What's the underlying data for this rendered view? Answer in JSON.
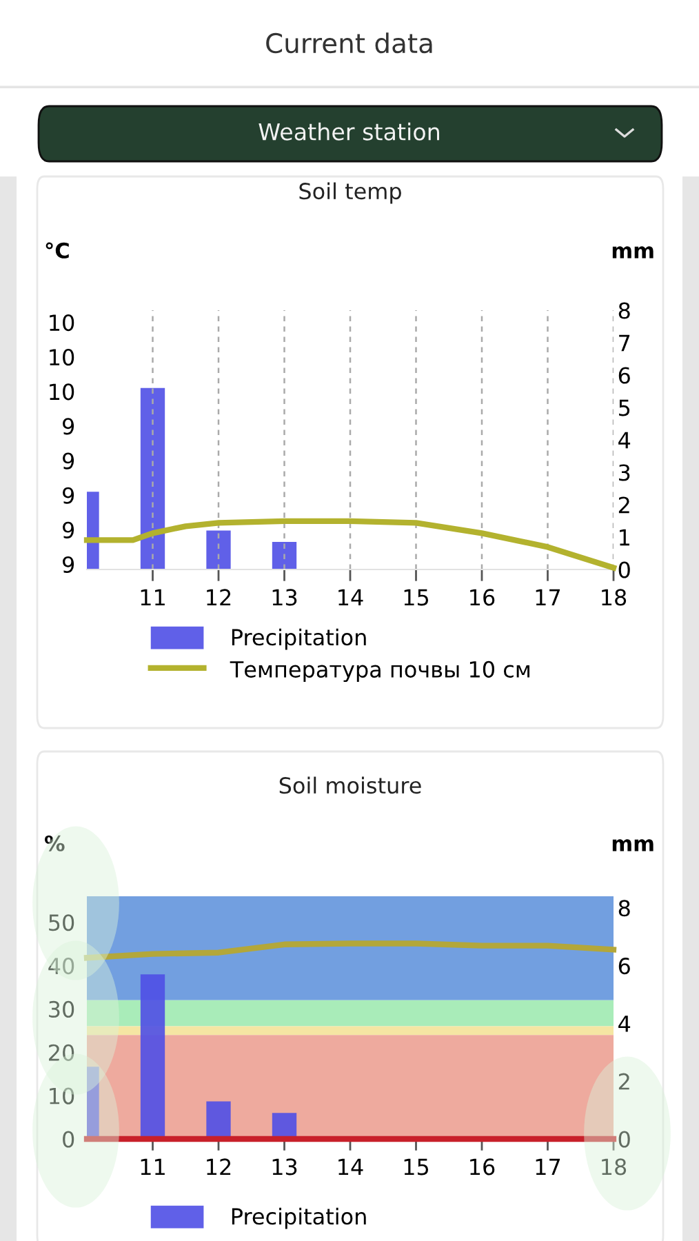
{
  "chart_data": [
    {
      "type": "bar",
      "title": "Soil temp",
      "annotations": [
        "Current data",
        "Weather station"
      ],
      "ylabel": "°C",
      "y2label": "mm",
      "xlim": [
        10,
        18
      ],
      "xticks": [
        11,
        12,
        13,
        14,
        15,
        16,
        17,
        18
      ],
      "ylim": [
        8.57,
        10.07
      ],
      "yticks": [
        {
          "value": 8.6,
          "label": "9"
        },
        {
          "value": 8.8,
          "label": "9"
        },
        {
          "value": 9.0,
          "label": "9"
        },
        {
          "value": 9.2,
          "label": "9"
        },
        {
          "value": 9.4,
          "label": "9"
        },
        {
          "value": 9.6,
          "label": "10"
        },
        {
          "value": 9.8,
          "label": "10"
        },
        {
          "value": 10.0,
          "label": "10"
        }
      ],
      "y2lim": [
        0,
        8
      ],
      "y2ticks": [
        0,
        1,
        2,
        3,
        4,
        5,
        6,
        7,
        8
      ],
      "grid": "x",
      "legend": "bottom",
      "series": [
        {
          "name": "Precipitation",
          "axis": "y2",
          "color": "#4f4fe6",
          "x": [
            10,
            11,
            12,
            13
          ],
          "values": [
            2.4,
            5.6,
            1.2,
            0.85
          ]
        },
        {
          "name": "Температура почвы 10 см",
          "type": "line",
          "color": "#b3b22e",
          "x": [
            10,
            10.7,
            11,
            11.5,
            12,
            13,
            14,
            15,
            16,
            17,
            18
          ],
          "values": [
            8.74,
            8.74,
            8.78,
            8.82,
            8.84,
            8.85,
            8.85,
            8.84,
            8.78,
            8.7,
            8.58
          ]
        }
      ]
    },
    {
      "type": "bar",
      "title": "Soil moisture",
      "ylabel": "%",
      "y2label": "mm",
      "xlim": [
        10,
        18
      ],
      "xticks": [
        11,
        12,
        13,
        14,
        15,
        16,
        17,
        18
      ],
      "ylim": [
        0,
        56
      ],
      "yticks": [
        0,
        10,
        20,
        30,
        40,
        50
      ],
      "y2lim": [
        0,
        8.4
      ],
      "y2ticks": [
        0,
        2,
        4,
        6,
        8
      ],
      "grid": false,
      "legend": "bottom",
      "bands": [
        {
          "axis": "y",
          "from": 32,
          "to": 56,
          "color": "#729fe0"
        },
        {
          "axis": "y",
          "from": 26,
          "to": 32,
          "color": "#a9ecb9"
        },
        {
          "axis": "y",
          "from": 24,
          "to": 26,
          "color": "#f5e6a3"
        },
        {
          "axis": "y",
          "from": 0,
          "to": 24,
          "color": "#eeaa9e"
        }
      ],
      "series": [
        {
          "name": "Precipitation",
          "axis": "y2",
          "color": "#4f4fe6",
          "x": [
            10,
            11,
            12,
            13
          ],
          "values": [
            2.5,
            5.7,
            1.3,
            0.9
          ]
        },
        {
          "type": "line",
          "color": "#c8202a",
          "x": [
            10,
            18
          ],
          "values": [
            0,
            0
          ]
        },
        {
          "type": "line",
          "color": "#b3a73a",
          "x": [
            10,
            11,
            12,
            13,
            14,
            15,
            16,
            17,
            18
          ],
          "values": [
            41.8,
            42.7,
            43,
            44.9,
            45.1,
            45.1,
            44.6,
            44.6,
            43.7
          ]
        }
      ]
    }
  ]
}
